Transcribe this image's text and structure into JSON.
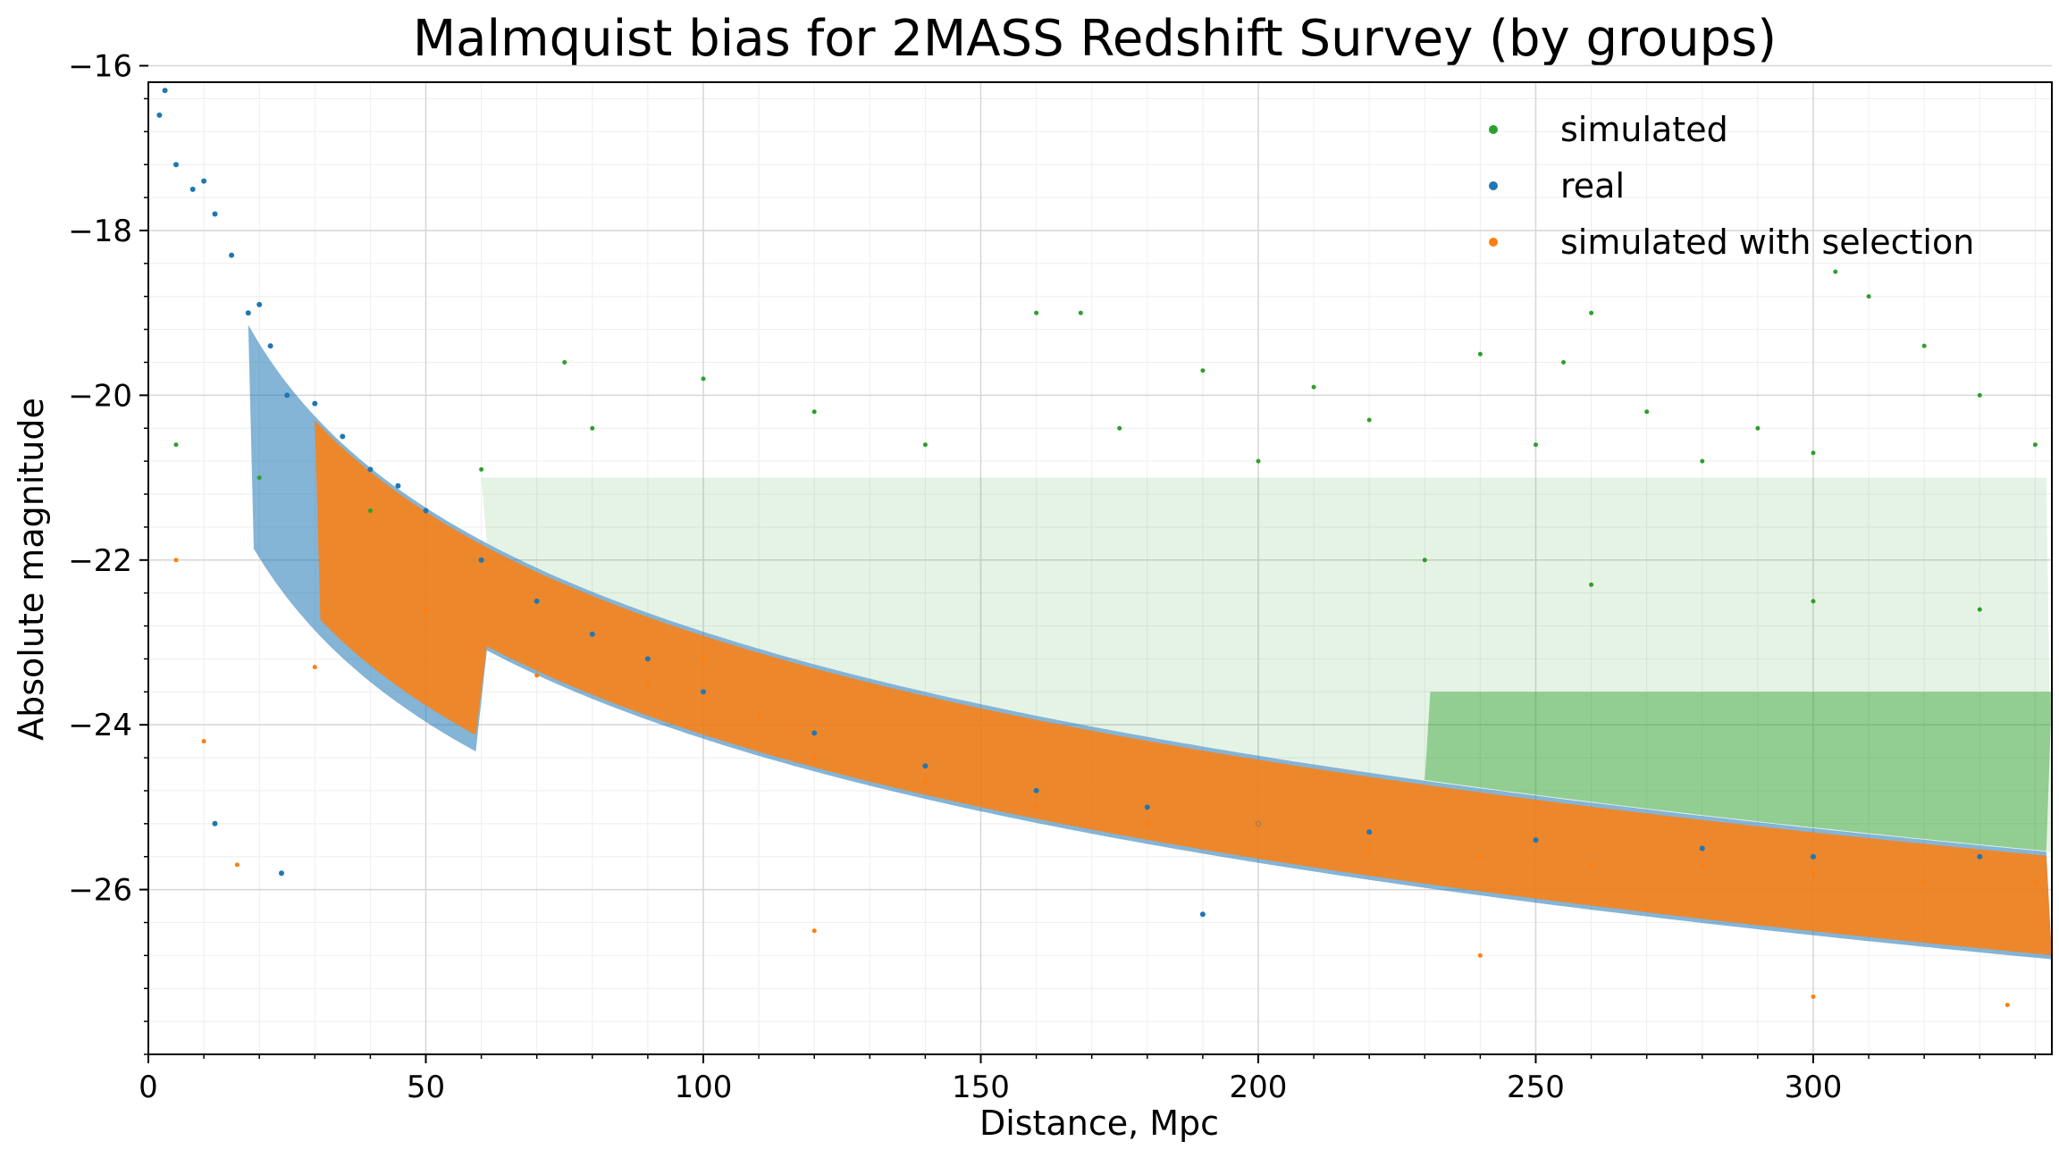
{
  "chart_data": {
    "type": "scatter",
    "title": "Malmquist bias for 2MASS Redshift Survey (by groups)",
    "xlabel": "Distance, Mpc",
    "ylabel": "Absolute magnitude",
    "xlim": [
      0,
      343
    ],
    "ylim": [
      -16.2,
      -28.0
    ],
    "y_inverted": true,
    "grid": "on (major and minor)",
    "legend_placement": "top-right",
    "x_ticks": [
      0,
      50,
      100,
      150,
      200,
      250,
      300
    ],
    "x_tick_labels": [
      "0",
      "50",
      "100",
      "150",
      "200",
      "250",
      "300"
    ],
    "y_ticks": [
      -16,
      -18,
      -20,
      -22,
      -24,
      -26
    ],
    "y_tick_labels": [
      "−16",
      "−18",
      "−20",
      "−22",
      "−24",
      "−26"
    ],
    "series": [
      {
        "name": "simulated",
        "color": "#2ca02c",
        "points": [
          [
            5,
            -20.6
          ],
          [
            20,
            -21.0
          ],
          [
            40,
            -21.4
          ],
          [
            60,
            -20.9
          ],
          [
            75,
            -19.6
          ],
          [
            80,
            -20.4
          ],
          [
            100,
            -19.8
          ],
          [
            120,
            -20.2
          ],
          [
            140,
            -20.6
          ],
          [
            160,
            -19.0
          ],
          [
            168,
            -19.0
          ],
          [
            175,
            -20.4
          ],
          [
            190,
            -19.7
          ],
          [
            200,
            -20.8
          ],
          [
            210,
            -19.9
          ],
          [
            220,
            -20.3
          ],
          [
            240,
            -19.5
          ],
          [
            250,
            -20.6
          ],
          [
            255,
            -19.6
          ],
          [
            260,
            -19.0
          ],
          [
            270,
            -20.2
          ],
          [
            280,
            -20.8
          ],
          [
            290,
            -20.4
          ],
          [
            300,
            -20.7
          ],
          [
            304,
            -18.5
          ],
          [
            310,
            -18.8
          ],
          [
            320,
            -19.4
          ],
          [
            330,
            -20.0
          ],
          [
            340,
            -20.6
          ],
          [
            230,
            -22.0
          ],
          [
            260,
            -22.3
          ],
          [
            300,
            -22.5
          ],
          [
            330,
            -22.6
          ]
        ]
      },
      {
        "name": "real",
        "color": "#1f77b4",
        "points": [
          [
            2,
            -16.6
          ],
          [
            3,
            -16.3
          ],
          [
            5,
            -17.2
          ],
          [
            8,
            -17.5
          ],
          [
            10,
            -17.4
          ],
          [
            12,
            -17.8
          ],
          [
            15,
            -18.3
          ],
          [
            18,
            -19.0
          ],
          [
            20,
            -18.9
          ],
          [
            22,
            -19.4
          ],
          [
            25,
            -20.0
          ],
          [
            30,
            -20.1
          ],
          [
            35,
            -20.5
          ],
          [
            40,
            -20.9
          ],
          [
            45,
            -21.1
          ],
          [
            50,
            -21.4
          ],
          [
            60,
            -22.0
          ],
          [
            70,
            -22.5
          ],
          [
            80,
            -22.9
          ],
          [
            90,
            -23.2
          ],
          [
            100,
            -23.6
          ],
          [
            120,
            -24.1
          ],
          [
            140,
            -24.5
          ],
          [
            160,
            -24.8
          ],
          [
            180,
            -25.0
          ],
          [
            200,
            -25.2
          ],
          [
            220,
            -25.3
          ],
          [
            250,
            -25.4
          ],
          [
            280,
            -25.5
          ],
          [
            300,
            -25.6
          ],
          [
            330,
            -25.6
          ],
          [
            12,
            -25.2
          ],
          [
            24,
            -25.8
          ],
          [
            190,
            -26.3
          ]
        ]
      },
      {
        "name": "simulated with selection",
        "color": "#ff7f0e",
        "points": [
          [
            5,
            -22.0
          ],
          [
            10,
            -24.2
          ],
          [
            16,
            -25.7
          ],
          [
            30,
            -23.3
          ],
          [
            50,
            -22.6
          ],
          [
            70,
            -23.4
          ],
          [
            90,
            -23.5
          ],
          [
            100,
            -23.2
          ],
          [
            110,
            -23.9
          ],
          [
            120,
            -24.4
          ],
          [
            140,
            -24.7
          ],
          [
            160,
            -25.0
          ],
          [
            180,
            -25.2
          ],
          [
            200,
            -25.2
          ],
          [
            220,
            -25.5
          ],
          [
            240,
            -25.6
          ],
          [
            260,
            -25.7
          ],
          [
            280,
            -25.7
          ],
          [
            300,
            -25.8
          ],
          [
            320,
            -25.9
          ],
          [
            340,
            -25.9
          ],
          [
            120,
            -26.5
          ],
          [
            240,
            -26.8
          ],
          [
            300,
            -27.3
          ],
          [
            335,
            -27.4
          ]
        ]
      }
    ]
  }
}
